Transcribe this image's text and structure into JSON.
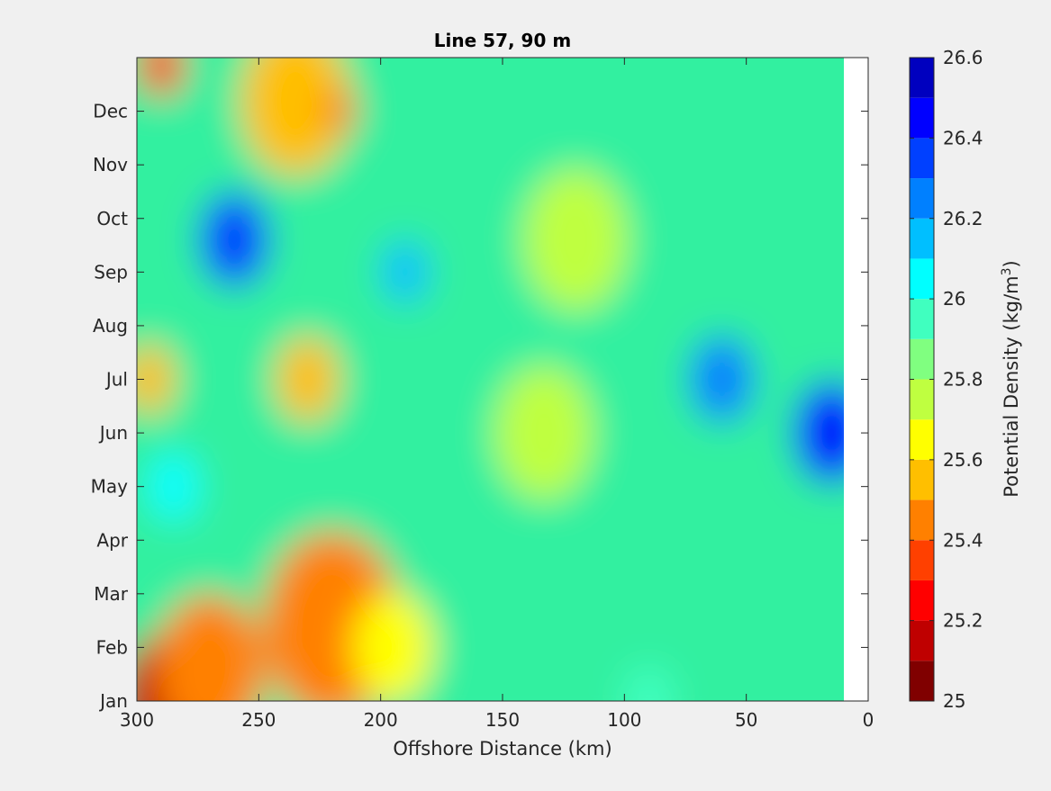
{
  "figure": {
    "background": "#f0f0f0"
  },
  "chart_data": {
    "type": "heatmap",
    "subtype": "filled-contour",
    "title": "Line 57, 90 m",
    "xlabel": "Offshore Distance (km)",
    "ylabel": "",
    "x_reversed": true,
    "xlim": [
      300,
      0
    ],
    "ylim": [
      "Jan",
      "end of Dec"
    ],
    "x_ticks": [
      300,
      250,
      200,
      150,
      100,
      50,
      0
    ],
    "x_tick_labels": [
      "300",
      "250",
      "200",
      "150",
      "100",
      "50",
      "0"
    ],
    "y_ticks": [
      "Jan",
      "Feb",
      "Mar",
      "Apr",
      "May",
      "Jun",
      "Jul",
      "Aug",
      "Sep",
      "Oct",
      "Nov",
      "Dec"
    ],
    "y_tick_labels": [
      "Jan",
      "Feb",
      "Mar",
      "Apr",
      "May",
      "Jun",
      "Jul",
      "Aug",
      "Sep",
      "Oct",
      "Nov",
      "Dec"
    ],
    "no_data_range_km": [
      0,
      10
    ],
    "grid": false,
    "colorbar": {
      "label": "Potential Density (kg/m",
      "label_superscript": "3",
      "label_suffix": ")",
      "range": [
        25.0,
        26.6
      ],
      "tick_values": [
        25.0,
        25.2,
        25.4,
        25.6,
        25.8,
        26.0,
        26.2,
        26.4,
        26.6
      ],
      "tick_labels": [
        "25",
        "25.2",
        "25.4",
        "25.6",
        "25.8",
        "26",
        "26.2",
        "26.4",
        "26.6"
      ],
      "levels": [
        25.0,
        25.1,
        25.2,
        25.3,
        25.4,
        25.5,
        25.6,
        25.7,
        25.8,
        25.9,
        26.0,
        26.1,
        26.2,
        26.3,
        26.4,
        26.5,
        26.6
      ],
      "colormap": "jet reversed",
      "colors": [
        "#800000",
        "#BF0000",
        "#FF0000",
        "#FF4000",
        "#FF8000",
        "#FFBF00",
        "#FFFF00",
        "#BFFF40",
        "#80FF80",
        "#40FFBF",
        "#00FFFF",
        "#00BFFF",
        "#0080FF",
        "#0040FF",
        "#0000FF",
        "#0000BF"
      ]
    },
    "features": [
      {
        "x": 288,
        "y": "Jan",
        "value": 25.15
      },
      {
        "x": 270,
        "y": "Jan-Feb",
        "value": 25.4
      },
      {
        "x": 220,
        "y": "Feb-Mar",
        "value": 25.45
      },
      {
        "x": 195,
        "y": "Feb",
        "value": 25.6
      },
      {
        "x": 290,
        "y": "end of Dec",
        "value": 25.3
      },
      {
        "x": 235,
        "y": "mid Dec",
        "value": 25.5
      },
      {
        "x": 217,
        "y": "Dec",
        "value": 25.45
      },
      {
        "x": 260,
        "y": "Sep-Oct",
        "value": 26.35
      },
      {
        "x": 190,
        "y": "Sep",
        "value": 26.15
      },
      {
        "x": 295,
        "y": "Jul",
        "value": 25.5
      },
      {
        "x": 230,
        "y": "Jul",
        "value": 25.55
      },
      {
        "x": 133,
        "y": "Jun",
        "value": 25.75
      },
      {
        "x": 285,
        "y": "May",
        "value": 26.05
      },
      {
        "x": 15,
        "y": "Jun",
        "value": 26.45
      },
      {
        "x": 60,
        "y": "Jun-Aug",
        "value": 26.25
      },
      {
        "x": 120,
        "y": "Sep-Oct",
        "value": 25.75
      },
      {
        "x": 90,
        "y": "Jan",
        "value": 25.9
      }
    ]
  }
}
